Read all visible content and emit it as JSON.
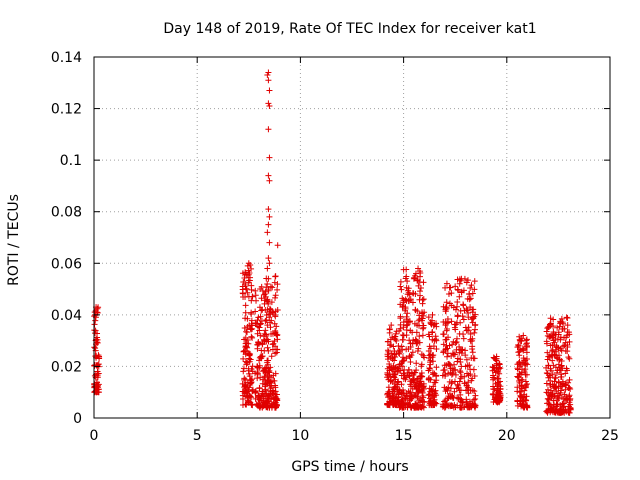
{
  "chart_data": {
    "type": "scatter",
    "title": "Day 148 of 2019, Rate Of TEC Index for receiver kat1",
    "xlabel": "GPS time / hours",
    "ylabel": "ROTI / TECUs",
    "xlim": [
      0,
      25
    ],
    "ylim": [
      0,
      0.14
    ],
    "xticks": [
      "0",
      "5",
      "10",
      "15",
      "20",
      "25"
    ],
    "yticks": [
      "0",
      "0.02",
      "0.04",
      "0.06",
      "0.08",
      "0.1",
      "0.12",
      "0.14"
    ],
    "grid": true,
    "marker": "+",
    "color": "#e00000",
    "clusters": [
      {
        "x": [
          0.0,
          0.25
        ],
        "ymin": 0.01,
        "ymax": 0.043,
        "count": 70
      },
      {
        "x": [
          7.2,
          7.7
        ],
        "ymin": 0.005,
        "ymax": 0.06,
        "count": 140
      },
      {
        "x": [
          7.8,
          8.9
        ],
        "ymin": 0.004,
        "ymax": 0.055,
        "count": 280
      },
      {
        "x": [
          14.2,
          14.8
        ],
        "ymin": 0.005,
        "ymax": 0.036,
        "count": 140
      },
      {
        "x": [
          14.8,
          16.0
        ],
        "ymin": 0.004,
        "ymax": 0.058,
        "count": 300
      },
      {
        "x": [
          16.2,
          16.6
        ],
        "ymin": 0.005,
        "ymax": 0.04,
        "count": 90
      },
      {
        "x": [
          16.9,
          18.5
        ],
        "ymin": 0.004,
        "ymax": 0.054,
        "count": 280
      },
      {
        "x": [
          19.3,
          19.7
        ],
        "ymin": 0.006,
        "ymax": 0.024,
        "count": 90
      },
      {
        "x": [
          20.5,
          21.0
        ],
        "ymin": 0.004,
        "ymax": 0.032,
        "count": 110
      },
      {
        "x": [
          21.9,
          23.1
        ],
        "ymin": 0.002,
        "ymax": 0.039,
        "count": 260
      }
    ],
    "highlights": [
      {
        "x": 8.25,
        "y": 0.03
      },
      {
        "x": 8.3,
        "y": 0.034
      },
      {
        "x": 8.35,
        "y": 0.038
      },
      {
        "x": 8.4,
        "y": 0.042
      },
      {
        "x": 8.4,
        "y": 0.046
      },
      {
        "x": 8.45,
        "y": 0.05
      },
      {
        "x": 8.45,
        "y": 0.054
      },
      {
        "x": 8.4,
        "y": 0.058
      },
      {
        "x": 8.5,
        "y": 0.06
      },
      {
        "x": 8.45,
        "y": 0.062
      },
      {
        "x": 8.5,
        "y": 0.068
      },
      {
        "x": 8.4,
        "y": 0.072
      },
      {
        "x": 8.45,
        "y": 0.075
      },
      {
        "x": 8.5,
        "y": 0.078
      },
      {
        "x": 8.45,
        "y": 0.081
      },
      {
        "x": 8.5,
        "y": 0.092
      },
      {
        "x": 8.45,
        "y": 0.094
      },
      {
        "x": 8.5,
        "y": 0.101
      },
      {
        "x": 8.45,
        "y": 0.112
      },
      {
        "x": 8.5,
        "y": 0.121
      },
      {
        "x": 8.45,
        "y": 0.122
      },
      {
        "x": 8.5,
        "y": 0.127
      },
      {
        "x": 8.45,
        "y": 0.131
      },
      {
        "x": 8.4,
        "y": 0.133
      },
      {
        "x": 8.45,
        "y": 0.134
      },
      {
        "x": 8.9,
        "y": 0.067
      },
      {
        "x": 8.8,
        "y": 0.055
      },
      {
        "x": 7.45,
        "y": 0.059
      },
      {
        "x": 7.5,
        "y": 0.06
      },
      {
        "x": 7.4,
        "y": 0.05
      },
      {
        "x": 0.1,
        "y": 0.043
      },
      {
        "x": 0.15,
        "y": 0.041
      },
      {
        "x": 0.05,
        "y": 0.04
      },
      {
        "x": 15.7,
        "y": 0.058
      },
      {
        "x": 15.6,
        "y": 0.056
      },
      {
        "x": 15.5,
        "y": 0.054
      },
      {
        "x": 15.2,
        "y": 0.048
      },
      {
        "x": 15.1,
        "y": 0.046
      },
      {
        "x": 17.8,
        "y": 0.054
      },
      {
        "x": 17.7,
        "y": 0.047
      },
      {
        "x": 17.6,
        "y": 0.045
      },
      {
        "x": 18.2,
        "y": 0.046
      },
      {
        "x": 18.35,
        "y": 0.041
      },
      {
        "x": 20.8,
        "y": 0.032
      },
      {
        "x": 22.9,
        "y": 0.039
      },
      {
        "x": 22.95,
        "y": 0.036
      },
      {
        "x": 16.4,
        "y": 0.04
      },
      {
        "x": 14.4,
        "y": 0.036
      }
    ]
  }
}
